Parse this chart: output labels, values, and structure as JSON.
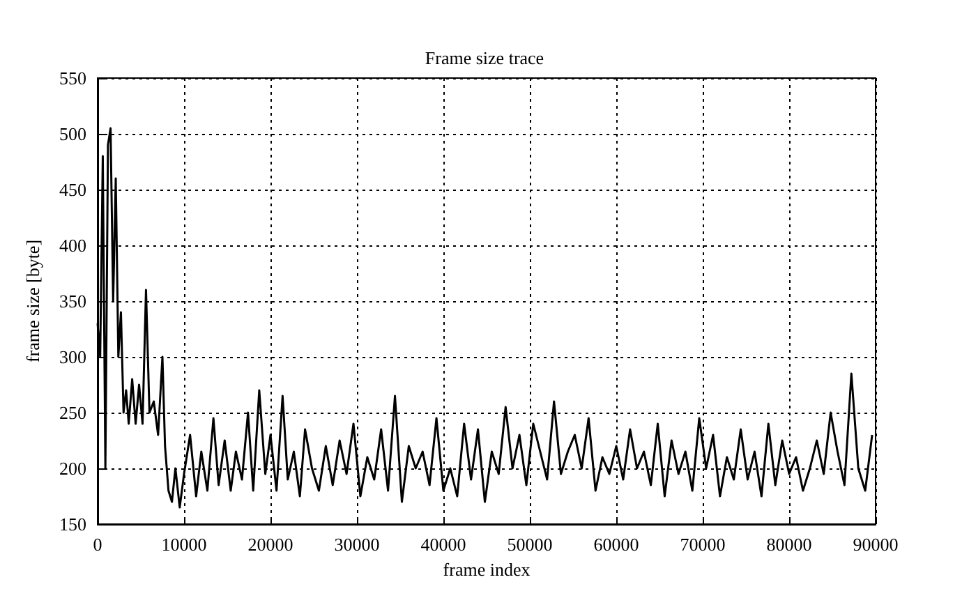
{
  "chart_data": {
    "type": "line",
    "title": "Frame size trace",
    "xlabel": "frame index",
    "ylabel": "frame size [byte]",
    "xlim": [
      0,
      90000
    ],
    "xticks": [
      0,
      10000,
      20000,
      30000,
      40000,
      50000,
      60000,
      70000,
      80000,
      90000
    ],
    "ylim": [
      150,
      550
    ],
    "yticks": [
      150,
      200,
      250,
      300,
      350,
      400,
      450,
      500,
      550
    ],
    "grid": true,
    "marker": "none",
    "line_style": "solid",
    "series": [
      {
        "color": "#000000",
        "x": [
          0,
          300,
          600,
          900,
          1200,
          1500,
          1800,
          2100,
          2400,
          2700,
          3000,
          3300,
          3600,
          4000,
          4400,
          4800,
          5200,
          5600,
          6000,
          6500,
          7000,
          7500,
          7800,
          8200,
          8600,
          9000,
          9500,
          10000,
          10700,
          11400,
          12000,
          12700,
          13400,
          14000,
          14700,
          15400,
          16000,
          16700,
          17400,
          18000,
          18700,
          19400,
          20000,
          20700,
          21400,
          22000,
          22700,
          23400,
          24000,
          24800,
          25600,
          26400,
          27200,
          28000,
          28800,
          29600,
          30400,
          31200,
          32000,
          32800,
          33600,
          34400,
          35200,
          36000,
          36800,
          37600,
          38400,
          39200,
          40000,
          40800,
          41600,
          42400,
          43200,
          44000,
          44800,
          45600,
          46400,
          47200,
          48000,
          48800,
          49600,
          50400,
          51200,
          52000,
          52800,
          53600,
          54400,
          55200,
          56000,
          56800,
          57600,
          58400,
          59200,
          60000,
          60800,
          61600,
          62400,
          63200,
          64000,
          64800,
          65600,
          66400,
          67200,
          68000,
          68800,
          69600,
          70400,
          71200,
          72000,
          72800,
          73600,
          74400,
          75200,
          76000,
          76800,
          77600,
          78400,
          79200,
          80000,
          80800,
          81600,
          82400,
          83200,
          84000,
          84800,
          85600,
          86400,
          87200,
          88000,
          88800,
          89600
        ],
        "values": [
          330,
          300,
          480,
          200,
          490,
          505,
          350,
          460,
          300,
          340,
          250,
          270,
          240,
          280,
          240,
          275,
          240,
          360,
          250,
          260,
          230,
          300,
          220,
          180,
          170,
          200,
          165,
          195,
          230,
          175,
          215,
          180,
          245,
          185,
          225,
          180,
          215,
          190,
          250,
          180,
          270,
          195,
          230,
          180,
          265,
          190,
          215,
          175,
          235,
          200,
          180,
          220,
          185,
          225,
          195,
          240,
          175,
          210,
          190,
          235,
          180,
          265,
          170,
          220,
          200,
          215,
          185,
          245,
          180,
          200,
          175,
          240,
          190,
          235,
          170,
          215,
          195,
          255,
          200,
          230,
          185,
          240,
          215,
          190,
          260,
          195,
          215,
          230,
          200,
          245,
          180,
          210,
          195,
          220,
          190,
          235,
          200,
          215,
          185,
          240,
          175,
          225,
          195,
          215,
          180,
          245,
          200,
          230,
          175,
          210,
          190,
          235,
          190,
          215,
          175,
          240,
          185,
          225,
          195,
          210,
          180,
          200,
          225,
          195,
          250,
          215,
          185,
          285,
          200,
          180,
          230
        ]
      }
    ]
  }
}
